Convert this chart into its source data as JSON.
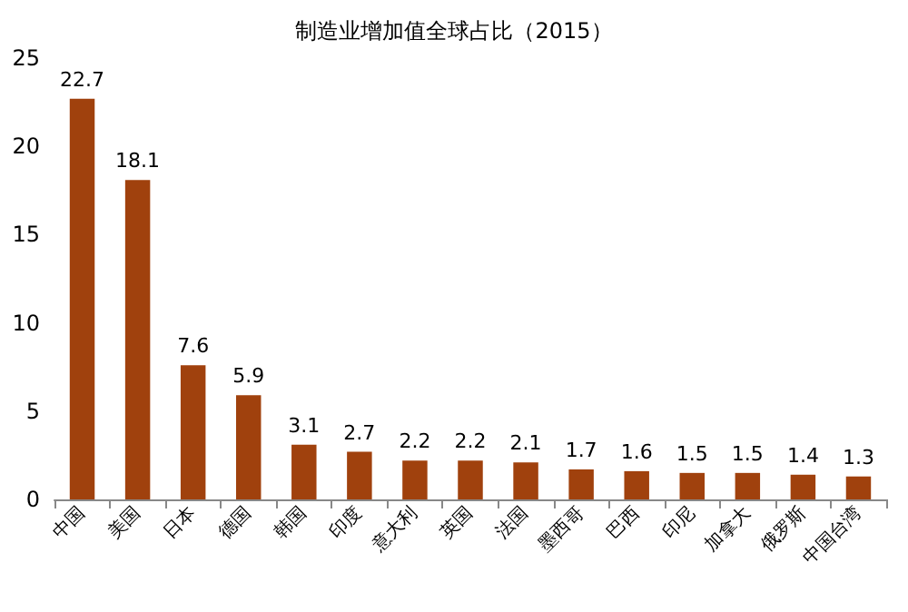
{
  "chart_data": {
    "type": "bar",
    "title": "制造业增加值全球占比（2015）",
    "categories": [
      "中国",
      "美国",
      "日本",
      "德国",
      "韩国",
      "印度",
      "意大利",
      "英国",
      "法国",
      "墨西哥",
      "巴西",
      "印尼",
      "加拿大",
      "俄罗斯",
      "中国台湾"
    ],
    "values": [
      22.7,
      18.1,
      7.6,
      5.9,
      3.1,
      2.7,
      2.2,
      2.2,
      2.1,
      1.7,
      1.6,
      1.5,
      1.5,
      1.4,
      1.3
    ],
    "color": "#a0410d",
    "ylim": [
      0,
      25
    ],
    "yticks": [
      0,
      5,
      10,
      15,
      20,
      25
    ],
    "data_labels": true
  }
}
